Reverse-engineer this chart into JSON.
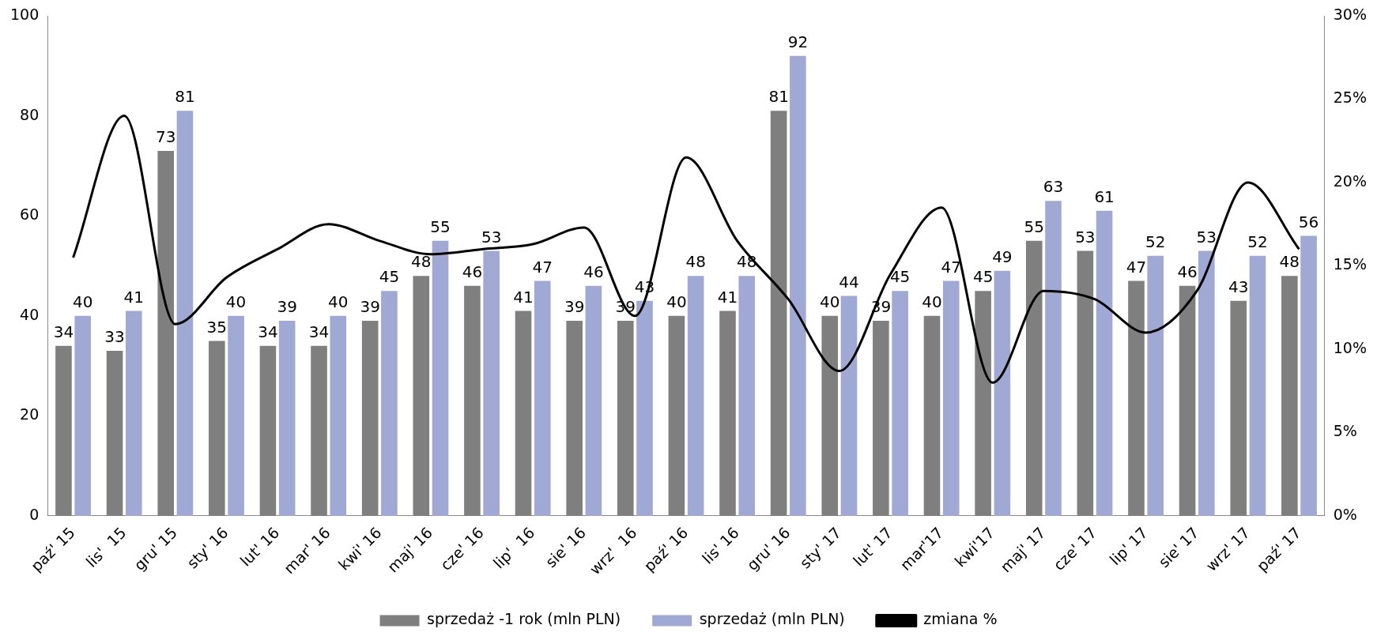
{
  "chart_data": {
    "type": "bar",
    "categories": [
      "paź' 15",
      "lis'  15",
      "gru' 15",
      "sty' 16",
      "lut' 16",
      "mar' 16",
      "kwi' 16",
      "maj' 16",
      "cze' 16",
      "lip'  16",
      "sie' 16",
      "wrz'  16",
      "paź' 16",
      "lis' 16",
      "gru' 16",
      "sty' 17",
      "lut' 17",
      "mar'17",
      "kwi'17",
      "maj' 17",
      "cze' 17",
      "lip' 17",
      "sie' 17",
      "wrz' 17",
      "paź' 17"
    ],
    "series": [
      {
        "name": "sprzedaż -1 rok (mln PLN)",
        "color": "#7f7f7f",
        "values": [
          34,
          33,
          73,
          35,
          34,
          34,
          39,
          48,
          46,
          41,
          39,
          39,
          40,
          41,
          81,
          40,
          39,
          40,
          45,
          55,
          53,
          47,
          46,
          43,
          48
        ],
        "value_labels": [
          "34",
          "33",
          "73",
          "35",
          "34",
          "34",
          "39",
          "48",
          "46",
          "41",
          "39",
          "39",
          "40",
          "41",
          "81",
          "40",
          "39",
          "40",
          "45",
          "55",
          "53",
          "47",
          "46",
          "43",
          "48"
        ]
      },
      {
        "name": "sprzedaż (mln PLN)",
        "color": "#a0a8d4",
        "values": [
          40,
          41,
          81,
          40,
          39,
          40,
          45,
          55,
          53,
          47,
          46,
          43,
          48,
          48,
          92,
          44,
          45,
          47,
          49,
          63,
          61,
          52,
          53,
          52,
          56
        ],
        "value_labels": [
          "40",
          "41",
          "81",
          "40",
          "39",
          "40",
          "45",
          "55",
          "53",
          "47",
          "46",
          "43",
          "48",
          "48",
          "92",
          "44",
          "45",
          "47",
          "49",
          "63",
          "61",
          "52",
          "53",
          "52",
          "56"
        ]
      },
      {
        "name": "zmiana %",
        "type": "line",
        "axis": "y2",
        "color": "#000000",
        "values": [
          15.5,
          24,
          11.5,
          14.3,
          16,
          17.5,
          16.5,
          15.7,
          16,
          16.3,
          17.3,
          12,
          21.5,
          16.5,
          13,
          8.7,
          14.5,
          18.5,
          8,
          13.5,
          13,
          11,
          13.5,
          20,
          16
        ]
      }
    ],
    "ylim": [
      0,
      100
    ],
    "yticks": [
      0,
      20,
      40,
      60,
      80,
      100
    ],
    "y2lim": [
      0,
      30
    ],
    "y2ticks": [
      {
        "value": 0,
        "label": "0%"
      },
      {
        "value": 5,
        "label": "5%"
      },
      {
        "value": 10,
        "label": "10%"
      },
      {
        "value": 15,
        "label": "15%"
      },
      {
        "value": 20,
        "label": "20%"
      },
      {
        "value": 25,
        "label": "25%"
      },
      {
        "value": 30,
        "label": "30%"
      }
    ],
    "legend": "bottom",
    "marker": "none",
    "line_style": "solid"
  }
}
